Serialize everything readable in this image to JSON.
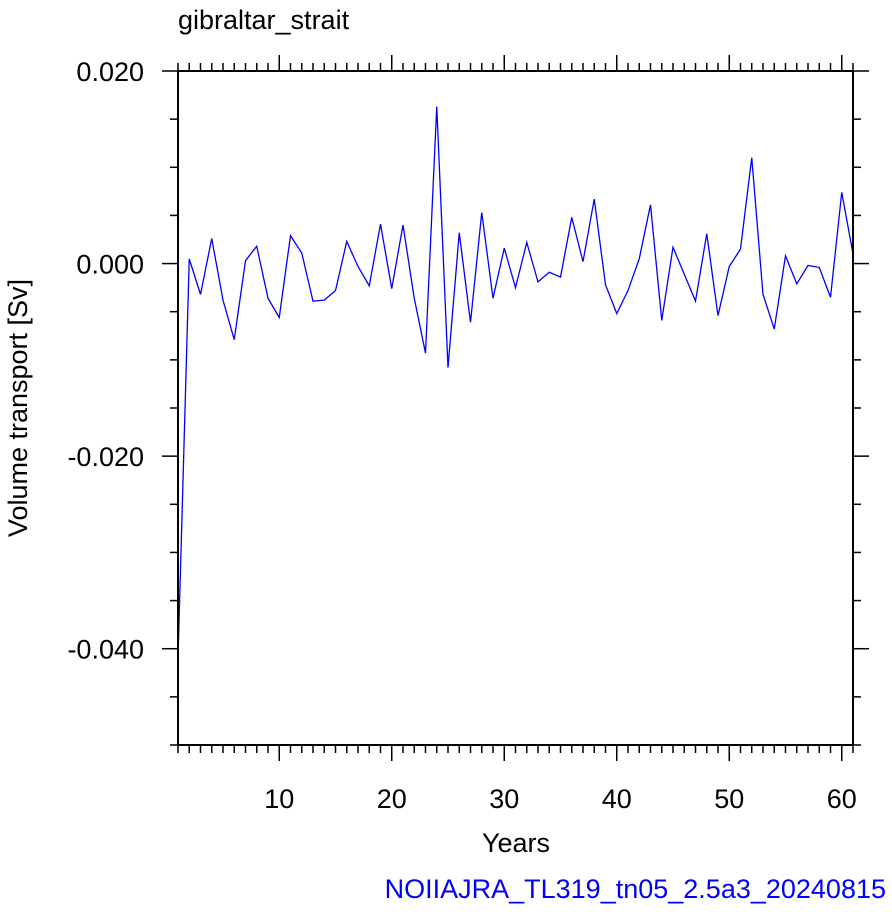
{
  "chart_data": {
    "type": "line",
    "title": "gibraltar_strait",
    "xlabel": "Years",
    "ylabel": "Volume transport [Sv]",
    "xlim": [
      1,
      61
    ],
    "ylim": [
      -0.05,
      0.02
    ],
    "xticks": [
      10,
      20,
      30,
      40,
      50,
      60
    ],
    "xtick_labels": [
      "10",
      "20",
      "30",
      "40",
      "50",
      "60"
    ],
    "yticks": [
      -0.04,
      -0.02,
      0.0,
      0.02
    ],
    "ytick_labels": [
      "-0.040",
      "-0.020",
      "0.000",
      "0.020"
    ],
    "series": [
      {
        "color": "#0000ff",
        "x": [
          1,
          2,
          3,
          4,
          5,
          6,
          7,
          8,
          9,
          10,
          11,
          12,
          13,
          14,
          15,
          16,
          17,
          18,
          19,
          20,
          21,
          22,
          23,
          24,
          25,
          26,
          27,
          28,
          29,
          30,
          31,
          32,
          33,
          34,
          35,
          36,
          37,
          38,
          39,
          40,
          41,
          42,
          43,
          44,
          45,
          46,
          47,
          48,
          49,
          50,
          51,
          52,
          53,
          54,
          55,
          56,
          57,
          58,
          59,
          60,
          61
        ],
        "values": [
          -0.041,
          0.0005,
          -0.0032,
          0.0026,
          -0.0038,
          -0.0079,
          0.0003,
          0.0018,
          -0.0036,
          -0.0056,
          0.0029,
          0.0011,
          -0.0039,
          -0.0038,
          -0.0028,
          0.0023,
          -0.0003,
          -0.0023,
          0.0041,
          -0.0026,
          0.004,
          -0.0036,
          -0.0093,
          0.0163,
          -0.0108,
          0.0032,
          -0.0061,
          0.0053,
          -0.0036,
          0.0016,
          -0.0025,
          0.0022,
          -0.0019,
          -0.0009,
          -0.0014,
          0.0048,
          0.0002,
          0.0067,
          -0.0022,
          -0.0052,
          -0.0028,
          0.0005,
          0.0061,
          -0.0059,
          0.0017,
          -0.0011,
          -0.0039,
          0.0031,
          -0.0054,
          -0.0003,
          0.0015,
          0.011,
          -0.0032,
          -0.0068,
          0.0008,
          -0.0021,
          -0.0002,
          -0.0004,
          -0.0035,
          0.0074,
          0.001
        ]
      }
    ],
    "grid": false,
    "legend": "none"
  },
  "footer": {
    "text": "NOIIAJRA_TL319_tn05_2.5a3_20240815",
    "color": "#0000ff"
  }
}
